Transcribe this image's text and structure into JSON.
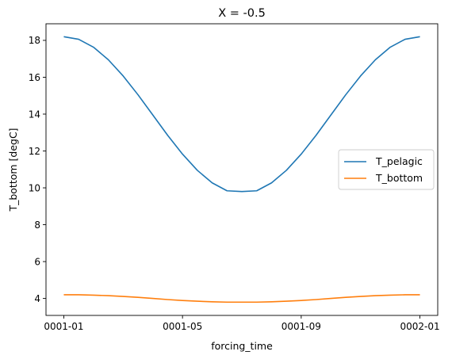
{
  "chart_data": {
    "type": "line",
    "title": "X = -0.5",
    "xlabel": "forcing_time",
    "ylabel": "T_bottom [degC]",
    "x_ticks": [
      {
        "value": 0,
        "label": "0001-01"
      },
      {
        "value": 4,
        "label": "0001-05"
      },
      {
        "value": 8,
        "label": "0001-09"
      },
      {
        "value": 12,
        "label": "0002-01"
      }
    ],
    "y_ticks": [
      4,
      6,
      8,
      10,
      12,
      14,
      16,
      18
    ],
    "xlim": [
      -0.6,
      12.6
    ],
    "ylim": [
      3.08,
      18.9
    ],
    "grid": false,
    "legend_position": "center-right",
    "x": [
      0,
      0.5,
      1,
      1.5,
      2,
      2.5,
      3,
      3.5,
      4,
      4.5,
      5,
      5.5,
      6,
      6.5,
      7,
      7.5,
      8,
      8.5,
      9,
      9.5,
      10,
      10.5,
      11,
      11.5,
      12
    ],
    "series": [
      {
        "name": "T_pelagic",
        "color": "#1f77b4",
        "values": [
          18.2,
          18.06,
          17.63,
          16.95,
          16.07,
          15.05,
          13.95,
          12.85,
          11.83,
          10.95,
          10.27,
          9.84,
          9.8,
          9.84,
          10.27,
          10.95,
          11.83,
          12.85,
          13.95,
          15.05,
          16.07,
          16.95,
          17.63,
          18.06,
          18.2
        ]
      },
      {
        "name": "T_bottom",
        "color": "#ff7f0e",
        "values": [
          4.2,
          4.2,
          4.18,
          4.15,
          4.11,
          4.06,
          4.0,
          3.94,
          3.89,
          3.85,
          3.82,
          3.8,
          3.8,
          3.8,
          3.82,
          3.85,
          3.89,
          3.94,
          4.0,
          4.06,
          4.11,
          4.15,
          4.18,
          4.2,
          4.2
        ]
      }
    ]
  }
}
